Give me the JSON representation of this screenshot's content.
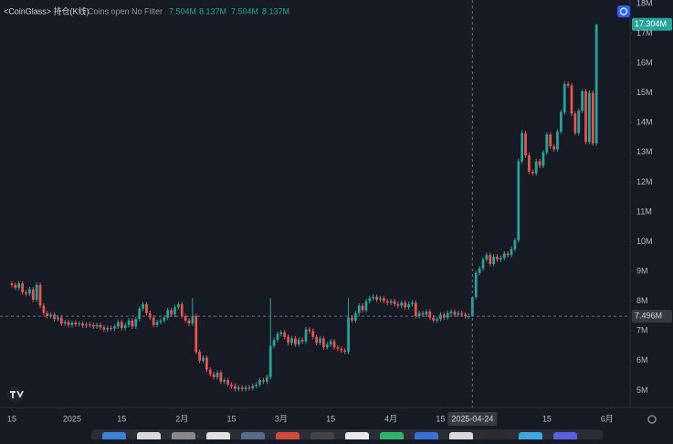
{
  "chart_data": {
    "type": "candlestick",
    "header": {
      "title": "<CoinGlass> 持仓(K线)",
      "subtitle": "Coins open No Filter",
      "ohlc_labels": [
        "7.504M",
        "8.137M",
        "7.504M",
        "8.137M"
      ]
    },
    "up_color": "#26a69a",
    "down_color": "#ef5350",
    "xlim": [
      -3.35,
      174.5
    ],
    "xticks": [
      {
        "value": 0,
        "label": "15"
      },
      {
        "value": 17,
        "label": "2025"
      },
      {
        "value": 31,
        "label": "15"
      },
      {
        "value": 48,
        "label": "2月"
      },
      {
        "value": 62,
        "label": "15"
      },
      {
        "value": 76,
        "label": "3月"
      },
      {
        "value": 90,
        "label": "15"
      },
      {
        "value": 107,
        "label": "4月"
      },
      {
        "value": 121,
        "label": "15"
      },
      {
        "value": 151,
        "label": "15"
      },
      {
        "value": 168,
        "label": "6月"
      }
    ],
    "ylim": [
      4.43,
      18.12
    ],
    "yticks": [
      {
        "value": 18,
        "label": "18M"
      },
      {
        "value": 17,
        "label": "17M"
      },
      {
        "value": 16,
        "label": "16M"
      },
      {
        "value": 15,
        "label": "15M"
      },
      {
        "value": 14,
        "label": "14M"
      },
      {
        "value": 13,
        "label": "13M"
      },
      {
        "value": 12,
        "label": "12M"
      },
      {
        "value": 11,
        "label": "11M"
      },
      {
        "value": 10,
        "label": "10M"
      },
      {
        "value": 9,
        "label": "9M"
      },
      {
        "value": 8,
        "label": "8M"
      },
      {
        "value": 7,
        "label": "7M"
      },
      {
        "value": 6,
        "label": "6M"
      },
      {
        "value": 5,
        "label": "5M"
      }
    ],
    "last_price": {
      "value": 17.304,
      "label": "17.304M"
    },
    "crosshair": {
      "candle": 130,
      "date": "2025-04-24",
      "price": {
        "value": 7.496,
        "label": "7.496M"
      }
    },
    "candles": [
      [
        8.6,
        8.68,
        8.47,
        8.55
      ],
      [
        8.55,
        8.63,
        8.37,
        8.45
      ],
      [
        8.45,
        8.68,
        8.37,
        8.6
      ],
      [
        8.6,
        8.68,
        8.22,
        8.3
      ],
      [
        8.3,
        8.38,
        8.17,
        8.25
      ],
      [
        8.25,
        8.48,
        8.17,
        8.4
      ],
      [
        8.4,
        8.48,
        7.97,
        8.05
      ],
      [
        8.05,
        8.63,
        7.97,
        8.55
      ],
      [
        8.55,
        8.63,
        7.77,
        7.85
      ],
      [
        7.85,
        7.93,
        7.52,
        7.6
      ],
      [
        7.6,
        7.68,
        7.42,
        7.5
      ],
      [
        7.5,
        7.63,
        7.42,
        7.55
      ],
      [
        7.55,
        7.63,
        7.32,
        7.4
      ],
      [
        7.4,
        7.53,
        7.32,
        7.45
      ],
      [
        7.45,
        7.53,
        7.17,
        7.25
      ],
      [
        7.25,
        7.38,
        7.17,
        7.3
      ],
      [
        7.3,
        7.38,
        7.12,
        7.2
      ],
      [
        7.2,
        7.36,
        7.12,
        7.28
      ],
      [
        7.28,
        7.36,
        7.14,
        7.22
      ],
      [
        7.22,
        7.33,
        7.14,
        7.25
      ],
      [
        7.25,
        7.33,
        7.1,
        7.18
      ],
      [
        7.18,
        7.3,
        7.1,
        7.22
      ],
      [
        7.22,
        7.3,
        7.12,
        7.2
      ],
      [
        7.2,
        7.28,
        7.07,
        7.15
      ],
      [
        7.15,
        7.28,
        7.07,
        7.2
      ],
      [
        7.2,
        7.28,
        7.04,
        7.12
      ],
      [
        7.12,
        7.2,
        6.97,
        7.05
      ],
      [
        7.05,
        7.18,
        6.97,
        7.1
      ],
      [
        7.1,
        7.18,
        7.0,
        7.08
      ],
      [
        7.08,
        7.23,
        7.0,
        7.15
      ],
      [
        7.15,
        7.38,
        7.07,
        7.3
      ],
      [
        7.3,
        7.38,
        7.02,
        7.1
      ],
      [
        7.1,
        7.28,
        7.02,
        7.2
      ],
      [
        7.2,
        7.43,
        7.12,
        7.35
      ],
      [
        7.35,
        7.43,
        7.07,
        7.15
      ],
      [
        7.15,
        7.48,
        7.07,
        7.4
      ],
      [
        7.4,
        7.83,
        7.32,
        7.75
      ],
      [
        7.75,
        7.98,
        7.67,
        7.9
      ],
      [
        7.9,
        7.98,
        7.52,
        7.6
      ],
      [
        7.6,
        7.68,
        7.37,
        7.45
      ],
      [
        7.45,
        7.53,
        7.12,
        7.2
      ],
      [
        7.2,
        7.38,
        7.12,
        7.3
      ],
      [
        7.3,
        7.43,
        7.22,
        7.35
      ],
      [
        7.35,
        7.53,
        7.27,
        7.45
      ],
      [
        7.45,
        7.78,
        7.37,
        7.7
      ],
      [
        7.7,
        7.78,
        7.47,
        7.55
      ],
      [
        7.55,
        7.88,
        7.47,
        7.8
      ],
      [
        7.8,
        7.98,
        7.72,
        7.9
      ],
      [
        7.9,
        7.98,
        7.42,
        7.5
      ],
      [
        7.5,
        7.58,
        7.27,
        7.35
      ],
      [
        7.35,
        7.43,
        7.17,
        7.25
      ],
      [
        7.25,
        8.1,
        7.17,
        7.5
      ],
      [
        7.5,
        7.58,
        6.22,
        6.3
      ],
      [
        6.3,
        6.38,
        5.92,
        6.0
      ],
      [
        6.0,
        6.18,
        5.92,
        6.1
      ],
      [
        6.1,
        6.18,
        5.62,
        5.7
      ],
      [
        5.7,
        5.78,
        5.47,
        5.55
      ],
      [
        5.55,
        5.63,
        5.37,
        5.45
      ],
      [
        5.45,
        5.68,
        5.37,
        5.6
      ],
      [
        5.6,
        5.68,
        5.22,
        5.3
      ],
      [
        5.3,
        5.43,
        5.22,
        5.35
      ],
      [
        5.35,
        5.43,
        5.12,
        5.2
      ],
      [
        5.2,
        5.28,
        5.07,
        5.15
      ],
      [
        5.15,
        5.23,
        4.97,
        5.05
      ],
      [
        5.05,
        5.18,
        4.97,
        5.1
      ],
      [
        5.1,
        5.18,
        4.97,
        5.05
      ],
      [
        5.05,
        5.18,
        4.97,
        5.1
      ],
      [
        5.1,
        5.18,
        5.0,
        5.08
      ],
      [
        5.08,
        5.23,
        5.0,
        5.15
      ],
      [
        5.15,
        5.28,
        5.07,
        5.2
      ],
      [
        5.2,
        5.43,
        5.12,
        5.35
      ],
      [
        5.35,
        5.43,
        5.22,
        5.3
      ],
      [
        5.3,
        5.53,
        5.22,
        5.45
      ],
      [
        5.45,
        8.1,
        5.37,
        6.5
      ],
      [
        6.5,
        6.78,
        6.42,
        6.7
      ],
      [
        6.7,
        6.98,
        6.62,
        6.9
      ],
      [
        6.9,
        7.03,
        6.82,
        6.95
      ],
      [
        6.95,
        7.03,
        6.72,
        6.8
      ],
      [
        6.8,
        6.88,
        6.52,
        6.6
      ],
      [
        6.6,
        6.83,
        6.52,
        6.75
      ],
      [
        6.75,
        6.83,
        6.47,
        6.55
      ],
      [
        6.55,
        6.78,
        6.47,
        6.7
      ],
      [
        6.7,
        6.78,
        6.57,
        6.65
      ],
      [
        6.65,
        7.13,
        6.57,
        7.05
      ],
      [
        7.05,
        7.13,
        6.92,
        7.0
      ],
      [
        7.0,
        7.08,
        6.72,
        6.8
      ],
      [
        6.8,
        6.88,
        6.52,
        6.6
      ],
      [
        6.6,
        6.83,
        6.52,
        6.75
      ],
      [
        6.75,
        6.83,
        6.37,
        6.45
      ],
      [
        6.45,
        6.63,
        6.37,
        6.55
      ],
      [
        6.55,
        6.73,
        6.47,
        6.65
      ],
      [
        6.65,
        6.73,
        6.37,
        6.45
      ],
      [
        6.45,
        6.53,
        6.32,
        6.4
      ],
      [
        6.4,
        6.48,
        6.27,
        6.35
      ],
      [
        6.35,
        6.43,
        6.22,
        6.3
      ],
      [
        6.3,
        8.1,
        6.22,
        7.45
      ],
      [
        7.45,
        7.53,
        7.27,
        7.35
      ],
      [
        7.35,
        7.68,
        7.27,
        7.6
      ],
      [
        7.6,
        7.93,
        7.52,
        7.85
      ],
      [
        7.85,
        7.93,
        7.62,
        7.7
      ],
      [
        7.7,
        8.08,
        7.62,
        8.0
      ],
      [
        8.0,
        8.18,
        7.92,
        8.1
      ],
      [
        8.1,
        8.23,
        8.02,
        8.15
      ],
      [
        8.15,
        8.23,
        7.97,
        8.05
      ],
      [
        8.05,
        8.18,
        7.97,
        8.1
      ],
      [
        8.1,
        8.18,
        7.92,
        8.0
      ],
      [
        8.0,
        8.08,
        7.87,
        7.95
      ],
      [
        7.95,
        8.08,
        7.87,
        8.0
      ],
      [
        8.0,
        8.08,
        7.82,
        7.9
      ],
      [
        7.9,
        7.98,
        7.77,
        7.85
      ],
      [
        7.85,
        8.03,
        7.77,
        7.95
      ],
      [
        7.95,
        8.03,
        7.72,
        7.8
      ],
      [
        7.8,
        7.98,
        7.72,
        7.9
      ],
      [
        7.9,
        8.03,
        7.82,
        7.95
      ],
      [
        7.95,
        8.03,
        7.42,
        7.5
      ],
      [
        7.5,
        7.68,
        7.42,
        7.6
      ],
      [
        7.6,
        7.68,
        7.47,
        7.55
      ],
      [
        7.55,
        7.73,
        7.47,
        7.65
      ],
      [
        7.65,
        7.73,
        7.37,
        7.45
      ],
      [
        7.45,
        7.53,
        7.27,
        7.35
      ],
      [
        7.35,
        7.48,
        7.27,
        7.4
      ],
      [
        7.4,
        7.63,
        7.32,
        7.55
      ],
      [
        7.55,
        7.63,
        7.37,
        7.45
      ],
      [
        7.45,
        7.68,
        7.37,
        7.6
      ],
      [
        7.6,
        7.73,
        7.52,
        7.65
      ],
      [
        7.65,
        7.73,
        7.47,
        7.55
      ],
      [
        7.55,
        7.68,
        7.47,
        7.6
      ],
      [
        7.6,
        7.68,
        7.47,
        7.55
      ],
      [
        7.55,
        7.63,
        7.42,
        7.5
      ],
      [
        7.5,
        7.58,
        7.42,
        7.504
      ],
      [
        7.504,
        8.137,
        7.504,
        8.137
      ],
      [
        8.137,
        9.03,
        8.06,
        8.95
      ],
      [
        8.95,
        9.18,
        8.87,
        9.1
      ],
      [
        9.1,
        9.48,
        9.02,
        9.4
      ],
      [
        9.4,
        9.63,
        9.32,
        9.55
      ],
      [
        9.55,
        9.63,
        9.17,
        9.25
      ],
      [
        9.25,
        9.58,
        9.17,
        9.5
      ],
      [
        9.5,
        9.58,
        9.32,
        9.4
      ],
      [
        9.4,
        9.53,
        9.32,
        9.45
      ],
      [
        9.45,
        9.68,
        9.37,
        9.6
      ],
      [
        9.6,
        9.68,
        9.47,
        9.55
      ],
      [
        9.55,
        9.83,
        9.47,
        9.75
      ],
      [
        9.75,
        10.13,
        9.67,
        10.05
      ],
      [
        10.05,
        12.78,
        9.97,
        12.7
      ],
      [
        12.7,
        13.75,
        12.62,
        13.65
      ],
      [
        13.65,
        13.73,
        12.82,
        12.9
      ],
      [
        12.9,
        12.98,
        12.27,
        12.35
      ],
      [
        12.35,
        12.43,
        12.22,
        12.3
      ],
      [
        12.3,
        12.78,
        12.22,
        12.7
      ],
      [
        12.7,
        12.78,
        12.47,
        12.55
      ],
      [
        12.55,
        13.08,
        12.47,
        13.0
      ],
      [
        13.0,
        13.68,
        12.92,
        13.6
      ],
      [
        13.6,
        13.68,
        13.12,
        13.2
      ],
      [
        13.2,
        13.28,
        13.02,
        13.1
      ],
      [
        13.1,
        13.78,
        13.02,
        13.7
      ],
      [
        13.7,
        14.43,
        13.62,
        14.35
      ],
      [
        14.35,
        15.38,
        14.27,
        15.3
      ],
      [
        15.3,
        15.38,
        15.17,
        15.25
      ],
      [
        15.25,
        15.33,
        14.22,
        14.3
      ],
      [
        14.3,
        14.38,
        13.57,
        13.65
      ],
      [
        13.65,
        14.48,
        13.57,
        14.4
      ],
      [
        14.4,
        15.13,
        14.32,
        15.05
      ],
      [
        15.05,
        15.13,
        13.27,
        13.35
      ],
      [
        13.35,
        15.08,
        13.27,
        15.0
      ],
      [
        15.0,
        15.08,
        13.22,
        13.3
      ],
      [
        13.3,
        17.304,
        13.22,
        17.304
      ]
    ]
  }
}
